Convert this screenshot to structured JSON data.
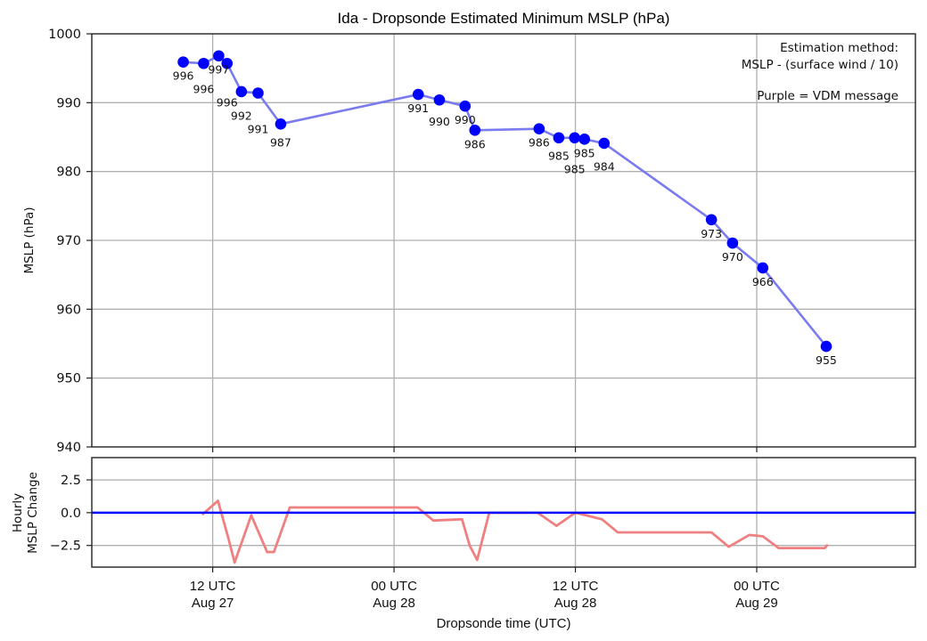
{
  "chart_data": [
    {
      "type": "line",
      "title": "Ida - Dropsonde Estimated Minimum MSLP (hPa)",
      "xlabel": "Dropsonde time (UTC)",
      "ylabel": "MSLP (hPa)",
      "ylim": [
        940,
        1000
      ],
      "xlim_hours_from_aug27_00utc": [
        4.0,
        58.5
      ],
      "yticks": [
        940,
        950,
        960,
        970,
        980,
        990,
        1000
      ],
      "xticks": [
        {
          "hour": 12,
          "line1": "12 UTC",
          "line2": "Aug 27"
        },
        {
          "hour": 24,
          "line1": "00 UTC",
          "line2": "Aug 28"
        },
        {
          "hour": 36,
          "line1": "12 UTC",
          "line2": "Aug 28"
        },
        {
          "hour": 48,
          "line1": "00 UTC",
          "line2": "Aug 29"
        }
      ],
      "grid": true,
      "line_color": "#7b7bf0",
      "marker_color": "#0000ff",
      "annotation": {
        "line1": "Estimation method:",
        "line2": "MSLP - (surface wind / 10)",
        "line3": "Purple = VDM message",
        "placement": "top-right"
      },
      "points": [
        {
          "hour": 10.05,
          "value": 995.9,
          "label": "996"
        },
        {
          "hour": 11.4,
          "value": 995.7,
          "label": "996"
        },
        {
          "hour": 12.4,
          "value": 996.8,
          "label": "997"
        },
        {
          "hour": 12.95,
          "value": 995.7,
          "label": "996"
        },
        {
          "hour": 13.9,
          "value": 991.6,
          "label": "992"
        },
        {
          "hour": 15.0,
          "value": 991.4,
          "label": "991"
        },
        {
          "hour": 16.5,
          "value": 986.9,
          "label": "987"
        },
        {
          "hour": 25.6,
          "value": 991.2,
          "label": "991"
        },
        {
          "hour": 27.0,
          "value": 990.4,
          "label": "990"
        },
        {
          "hour": 28.7,
          "value": 989.5,
          "label": "990"
        },
        {
          "hour": 29.35,
          "value": 986.0,
          "label": "986"
        },
        {
          "hour": 33.6,
          "value": 986.2,
          "label": "986"
        },
        {
          "hour": 34.9,
          "value": 984.9,
          "label": "985"
        },
        {
          "hour": 35.95,
          "value": 984.9,
          "label": "985"
        },
        {
          "hour": 36.6,
          "value": 984.7,
          "label": "985"
        },
        {
          "hour": 37.9,
          "value": 984.1,
          "label": "984"
        },
        {
          "hour": 45.0,
          "value": 973.0,
          "label": "973"
        },
        {
          "hour": 46.4,
          "value": 969.6,
          "label": "970"
        },
        {
          "hour": 48.4,
          "value": 966.0,
          "label": "966"
        },
        {
          "hour": 52.6,
          "value": 954.6,
          "label": "955"
        }
      ]
    },
    {
      "type": "line",
      "title": "",
      "xlabel": "Dropsonde time (UTC)",
      "ylabel_line1": "Hourly",
      "ylabel_line2": "MSLP Change",
      "ylim": [
        -4.15,
        4.2
      ],
      "yticks": [
        {
          "value": 2.5,
          "label": "2.5"
        },
        {
          "value": 0.0,
          "label": "0.0"
        },
        {
          "value": -2.5,
          "label": "−2.5"
        }
      ],
      "grid": true,
      "zero_line_color": "#0000ff",
      "series_color": "#f08080",
      "series": [
        {
          "hour": 11.35,
          "value": -0.1
        },
        {
          "hour": 12.35,
          "value": 0.9
        },
        {
          "hour": 13.05,
          "value": -2.0
        },
        {
          "hour": 13.45,
          "value": -3.8
        },
        {
          "hour": 14.55,
          "value": -0.2
        },
        {
          "hour": 15.6,
          "value": -3.0
        },
        {
          "hour": 16.05,
          "value": -3.0
        },
        {
          "hour": 17.1,
          "value": 0.4
        },
        {
          "hour": 25.55,
          "value": 0.4
        },
        {
          "hour": 26.6,
          "value": -0.6
        },
        {
          "hour": 28.5,
          "value": -0.5
        },
        {
          "hour": 29.0,
          "value": -2.5
        },
        {
          "hour": 29.5,
          "value": -3.6
        },
        {
          "hour": 30.3,
          "value": 0.0
        },
        {
          "hour": 33.5,
          "value": 0.0
        },
        {
          "hour": 34.75,
          "value": -1.0
        },
        {
          "hour": 36.0,
          "value": 0.0
        },
        {
          "hour": 37.75,
          "value": -0.5
        },
        {
          "hour": 38.8,
          "value": -1.5
        },
        {
          "hour": 45.0,
          "value": -1.5
        },
        {
          "hour": 46.15,
          "value": -2.6
        },
        {
          "hour": 47.5,
          "value": -1.7
        },
        {
          "hour": 48.4,
          "value": -1.8
        },
        {
          "hour": 49.45,
          "value": -2.7
        },
        {
          "hour": 52.5,
          "value": -2.7
        },
        {
          "hour": 52.65,
          "value": -2.5
        }
      ]
    }
  ]
}
